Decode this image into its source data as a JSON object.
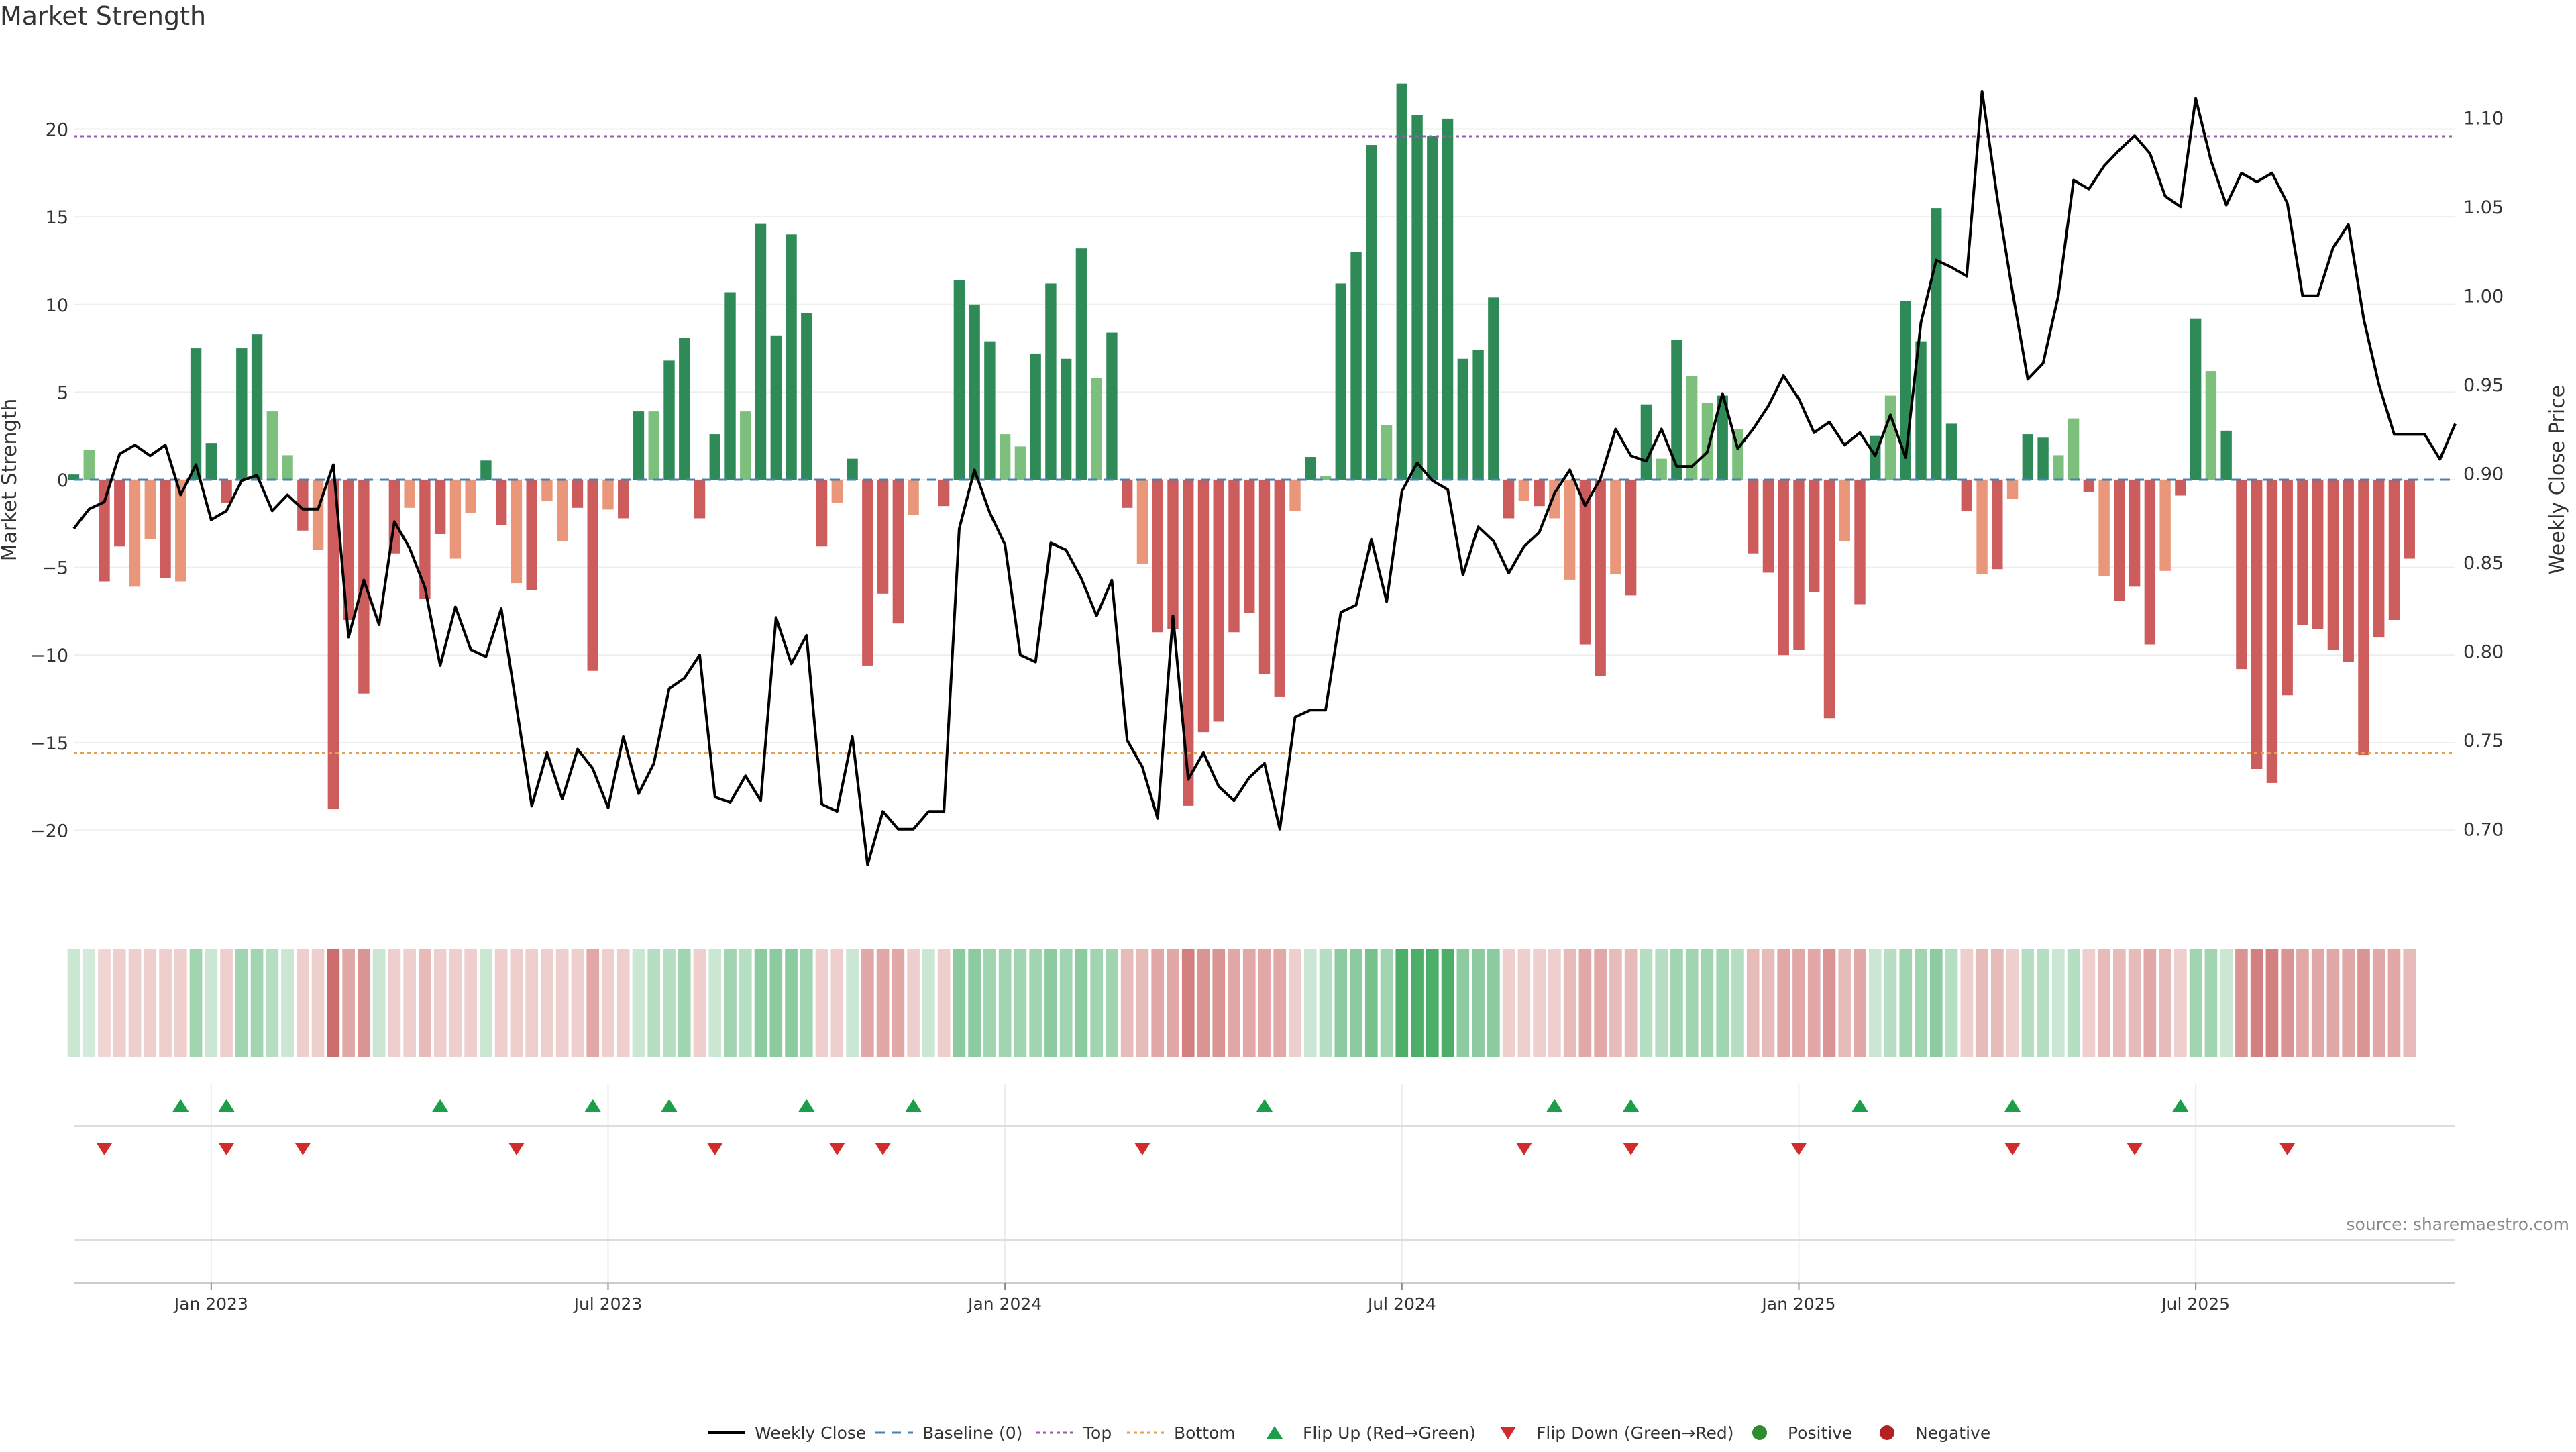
{
  "chart_data": {
    "type": "bar",
    "title": "Market Strength",
    "ylabel_left": "Market Strength",
    "ylabel_right": "Weekly Close Price",
    "ylim_left": [
      -24.5,
      24.5
    ],
    "ylim_right": [
      0.655,
      1.138
    ],
    "yticks_left": [
      20,
      15,
      10,
      5,
      0,
      -5,
      -10,
      -15,
      -20
    ],
    "ytick_labels_left": [
      "20",
      "15",
      "10",
      "5",
      "0",
      "−5",
      "−10",
      "−15",
      "−20"
    ],
    "yticks_right": [
      1.1,
      1.05,
      1.0,
      0.95,
      0.9,
      0.85,
      0.8,
      0.75,
      0.7
    ],
    "ytick_labels_right": [
      "1.10",
      "1.05",
      "1.00",
      "0.95",
      "0.90",
      "0.85",
      "0.80",
      "0.75",
      "0.70"
    ],
    "top_level": 19.6,
    "bottom_level": -15.6,
    "week_count": 157,
    "week_range": [
      "2022-11-07",
      "2025-10-27"
    ],
    "date_ticks": [
      {
        "label": "Jan 2023",
        "week": 9
      },
      {
        "label": "Jul 2023",
        "week": 35
      },
      {
        "label": "Jan 2024",
        "week": 61
      },
      {
        "label": "Jul 2024",
        "week": 87
      },
      {
        "label": "Jan 2025",
        "week": 113
      },
      {
        "label": "Jul 2025",
        "week": 139
      }
    ],
    "strength": [
      0.3,
      1.7,
      -5.8,
      -3.8,
      -6.1,
      -3.4,
      -5.6,
      -5.8,
      7.5,
      2.1,
      -1.3,
      7.5,
      8.3,
      3.9,
      1.4,
      -2.9,
      -4.0,
      -18.8,
      -8.0,
      -12.2,
      0.0,
      -4.2,
      -1.6,
      -6.8,
      -3.1,
      -4.5,
      -1.9,
      1.1,
      -2.6,
      -5.9,
      -6.3,
      -1.2,
      -3.5,
      -1.6,
      -10.9,
      -1.7,
      -2.2,
      3.9,
      3.9,
      6.8,
      8.1,
      -2.2,
      2.6,
      10.7,
      3.9,
      14.6,
      8.2,
      14.0,
      9.5,
      -3.8,
      -1.3,
      1.2,
      -10.6,
      -6.5,
      -8.2,
      -2.0,
      0.0,
      -1.5,
      11.4,
      10.0,
      7.9,
      2.6,
      1.9,
      7.2,
      11.2,
      6.9,
      13.2,
      5.8,
      8.4,
      -1.6,
      -4.8,
      -8.7,
      -8.5,
      -18.6,
      -14.4,
      -13.8,
      -8.7,
      -7.6,
      -11.1,
      -12.4,
      -1.8,
      1.3,
      0.2,
      11.2,
      13.0,
      19.1,
      3.1,
      22.6,
      20.8,
      19.6,
      20.6,
      6.9,
      7.4,
      10.4,
      -2.2,
      -1.2,
      -1.5,
      -2.2,
      -5.7,
      -9.4,
      -11.2,
      -5.4,
      -6.6,
      4.3,
      1.2,
      8.0,
      5.9,
      4.4,
      4.8,
      2.9,
      -4.2,
      -5.3,
      -10.0,
      -9.7,
      -6.4,
      -13.6,
      -3.5,
      -7.1,
      2.5,
      4.8,
      10.2,
      7.9,
      15.5,
      3.2,
      -1.8,
      -5.4,
      -5.1,
      -1.1,
      2.6,
      2.4,
      1.4,
      3.5,
      -0.7,
      -5.5,
      -6.9,
      -6.1,
      -9.4,
      -5.2,
      -0.9,
      9.2,
      6.2,
      2.8,
      -10.8,
      -16.5,
      -17.3,
      -12.3,
      -8.3,
      -8.5,
      -9.7,
      -10.4,
      -15.7,
      -9.0,
      -8.0,
      -4.5
    ],
    "price": [
      0.869,
      0.88,
      0.884,
      0.911,
      0.916,
      0.91,
      0.916,
      0.888,
      0.905,
      0.874,
      0.879,
      0.896,
      0.899,
      0.879,
      0.888,
      0.88,
      0.88,
      0.905,
      0.808,
      0.84,
      0.815,
      0.873,
      0.858,
      0.836,
      0.792,
      0.825,
      0.801,
      0.797,
      0.824,
      0.769,
      0.713,
      0.743,
      0.717,
      0.745,
      0.734,
      0.712,
      0.752,
      0.72,
      0.737,
      0.779,
      0.785,
      0.798,
      0.718,
      0.715,
      0.73,
      0.716,
      0.819,
      0.793,
      0.809,
      0.714,
      0.71,
      0.752,
      0.68,
      0.71,
      0.7,
      0.7,
      0.71,
      0.71,
      0.869,
      0.902,
      0.878,
      0.86,
      0.798,
      0.794,
      0.861,
      0.857,
      0.841,
      0.82,
      0.84,
      0.75,
      0.735,
      0.706,
      0.82,
      0.728,
      0.743,
      0.724,
      0.716,
      0.729,
      0.737,
      0.7,
      0.763,
      0.767,
      0.767,
      0.822,
      0.826,
      0.863,
      0.828,
      0.89,
      0.906,
      0.896,
      0.891,
      0.843,
      0.87,
      0.862,
      0.844,
      0.859,
      0.867,
      0.889,
      0.902,
      0.882,
      0.897,
      0.925,
      0.91,
      0.907,
      0.925,
      0.904,
      0.904,
      0.912,
      0.945,
      0.914,
      0.925,
      0.938,
      0.955,
      0.942,
      0.923,
      0.929,
      0.916,
      0.923,
      0.91,
      0.933,
      0.909,
      0.985,
      1.02,
      1.016,
      1.011,
      1.115,
      1.055,
      1.002,
      0.953,
      0.962,
      1.0,
      1.065,
      1.06,
      1.073,
      1.082,
      1.09,
      1.08,
      1.056,
      1.05,
      1.111,
      1.076,
      1.051,
      1.069,
      1.064,
      1.069,
      1.052,
      1.0,
      1.0,
      1.027,
      1.04,
      0.987,
      0.95,
      0.922,
      0.922,
      0.922,
      0.908,
      0.928
    ],
    "band_intensity": [
      0.25,
      0.22,
      0.22,
      0.25,
      0.25,
      0.25,
      0.25,
      0.25,
      0.45,
      0.25,
      0.25,
      0.45,
      0.45,
      0.35,
      0.25,
      0.25,
      0.25,
      0.75,
      0.45,
      0.55,
      0.25,
      0.25,
      0.25,
      0.35,
      0.25,
      0.25,
      0.25,
      0.25,
      0.25,
      0.25,
      0.25,
      0.25,
      0.25,
      0.25,
      0.45,
      0.25,
      0.25,
      0.25,
      0.35,
      0.35,
      0.45,
      0.25,
      0.25,
      0.45,
      0.35,
      0.55,
      0.55,
      0.55,
      0.45,
      0.25,
      0.25,
      0.25,
      0.45,
      0.45,
      0.45,
      0.25,
      0.25,
      0.25,
      0.55,
      0.55,
      0.45,
      0.45,
      0.45,
      0.45,
      0.55,
      0.45,
      0.55,
      0.45,
      0.45,
      0.35,
      0.35,
      0.45,
      0.45,
      0.65,
      0.55,
      0.55,
      0.45,
      0.45,
      0.45,
      0.45,
      0.25,
      0.25,
      0.35,
      0.55,
      0.55,
      0.65,
      0.45,
      0.85,
      0.85,
      0.85,
      0.85,
      0.55,
      0.55,
      0.55,
      0.25,
      0.25,
      0.25,
      0.25,
      0.35,
      0.45,
      0.45,
      0.35,
      0.35,
      0.35,
      0.35,
      0.45,
      0.45,
      0.45,
      0.45,
      0.35,
      0.35,
      0.35,
      0.45,
      0.45,
      0.45,
      0.55,
      0.35,
      0.45,
      0.25,
      0.35,
      0.45,
      0.45,
      0.55,
      0.35,
      0.25,
      0.35,
      0.35,
      0.25,
      0.35,
      0.35,
      0.25,
      0.35,
      0.25,
      0.35,
      0.35,
      0.35,
      0.45,
      0.35,
      0.25,
      0.45,
      0.45,
      0.25,
      0.55,
      0.65,
      0.65,
      0.55,
      0.45,
      0.45,
      0.45,
      0.45,
      0.55,
      0.45,
      0.45,
      0.35
    ],
    "flip_up_weeks": [
      7,
      10,
      24,
      34,
      39,
      48,
      55,
      78,
      97,
      102,
      117,
      127,
      138
    ],
    "flip_down_weeks": [
      2,
      10,
      15,
      29,
      42,
      50,
      53,
      70,
      95,
      102,
      113,
      127,
      135,
      145
    ],
    "legend": [
      "Weekly Close",
      "Baseline (0)",
      "Top",
      "Bottom",
      "Flip Up (Red→Green)",
      "Flip Down (Green→Red)",
      "Positive",
      "Negative"
    ],
    "legend_placement": "bottom-center",
    "colors": {
      "pos_dark": "#2e8b57",
      "pos_light": "#7dbf7d",
      "neg_dark": "#cd5c5c",
      "neg_light": "#e9967a",
      "price_line": "#000000",
      "baseline": "#4682b4",
      "top_line": "#9b59b6",
      "bottom_line": "#e6a04b",
      "flip_up": "#1e9e4a",
      "flip_down": "#d22b2b",
      "positive_dot": "#2e8b2e",
      "negative_dot": "#b22222",
      "grid": "#eeeeee",
      "axis": "#cccccc"
    }
  },
  "source_note": "source: sharemaestro.com"
}
